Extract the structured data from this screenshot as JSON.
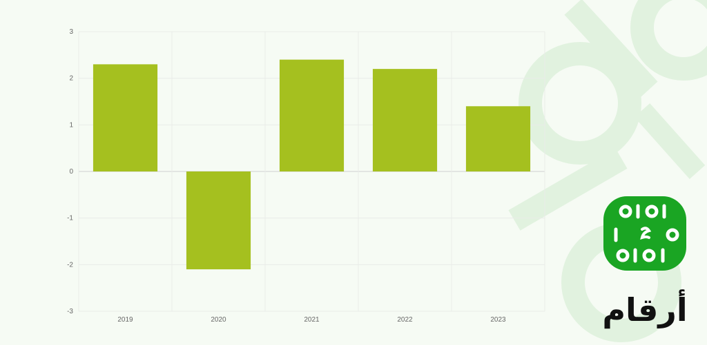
{
  "chart_data": {
    "type": "bar",
    "categories": [
      "2019",
      "2020",
      "2021",
      "2022",
      "2023"
    ],
    "values": [
      2.3,
      -2.1,
      2.4,
      2.2,
      1.4
    ],
    "title": "",
    "xlabel": "",
    "ylabel": "",
    "ylim": [
      -3,
      3
    ],
    "yticks": [
      "3",
      "2",
      "1",
      "0",
      "-1",
      "-2",
      "-3"
    ],
    "grid": true,
    "legend": "none",
    "bar_color": "#a5c01f"
  },
  "brand": {
    "name": "أرقام",
    "logo_bg": "#1aa523",
    "watermark_color": "#e1f2df"
  }
}
